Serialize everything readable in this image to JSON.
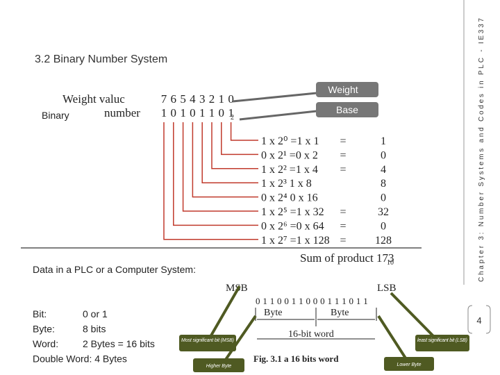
{
  "title": "3.2 Binary Number System",
  "callouts": {
    "weight": "Weight",
    "base": "Base",
    "binary": "Binary",
    "msb": "Most significant bit (MSB)",
    "lsb": "least significant bit (LSB)",
    "higher": "Higher Byte",
    "lower": "Lower Byte"
  },
  "figure1": {
    "weight_label": "Weight valuc",
    "weights": [
      "7",
      "6",
      "5",
      "4",
      "3",
      "2",
      "1",
      "0"
    ],
    "binary_label": "number",
    "bits": [
      "1",
      "0",
      "1",
      "0",
      "1",
      "1",
      "0",
      "1"
    ],
    "bits_base": "2",
    "rows": [
      {
        "expr": "1 x 2⁰ =1 x 1",
        "eq": "=",
        "result": "1"
      },
      {
        "expr": "0 x 2¹ =0 x 2",
        "eq": "=",
        "result": "0"
      },
      {
        "expr": "1 x 2² =1 x 4",
        "eq": "=",
        "result": "4"
      },
      {
        "expr": "1 x 2³   1 x 8",
        "eq": "",
        "result": "8"
      },
      {
        "expr": "0 x 2⁴   0 x 16",
        "eq": "",
        "result": "0"
      },
      {
        "expr": "1 x 2⁵ =1 x 32",
        "eq": "=",
        "result": "32"
      },
      {
        "expr": "0 x 2⁶ =0 x 64",
        "eq": "=",
        "result": "0"
      },
      {
        "expr": "1 x 2⁷ =1 x 128",
        "eq": "=",
        "result": "128"
      }
    ],
    "sum_label": "Sum of product 173",
    "sum_base": "10"
  },
  "data_heading": "Data in a PLC or a Computer System:",
  "definitions": [
    {
      "term": "Bit:",
      "value": "0 or 1"
    },
    {
      "term": "Byte:",
      "value": "8 bits"
    },
    {
      "term": "Word:",
      "value": "2 Bytes = 16 bits"
    },
    {
      "term": "Double Word: 4 Bytes",
      "value": ""
    }
  ],
  "figure2": {
    "msb": "MSB",
    "lsb": "LSB",
    "bits": "0 1 1 0 0 1 1 0 0 0 1 1 1 0 1 1",
    "byte_left": "Byte",
    "byte_right": "Byte",
    "word": "16-bit word",
    "caption": "Fig. 3.1 a 16 bits word"
  },
  "sidebar": "Chapter 3: Number Systems and Codes in PLC - IE337",
  "page_number": "4"
}
